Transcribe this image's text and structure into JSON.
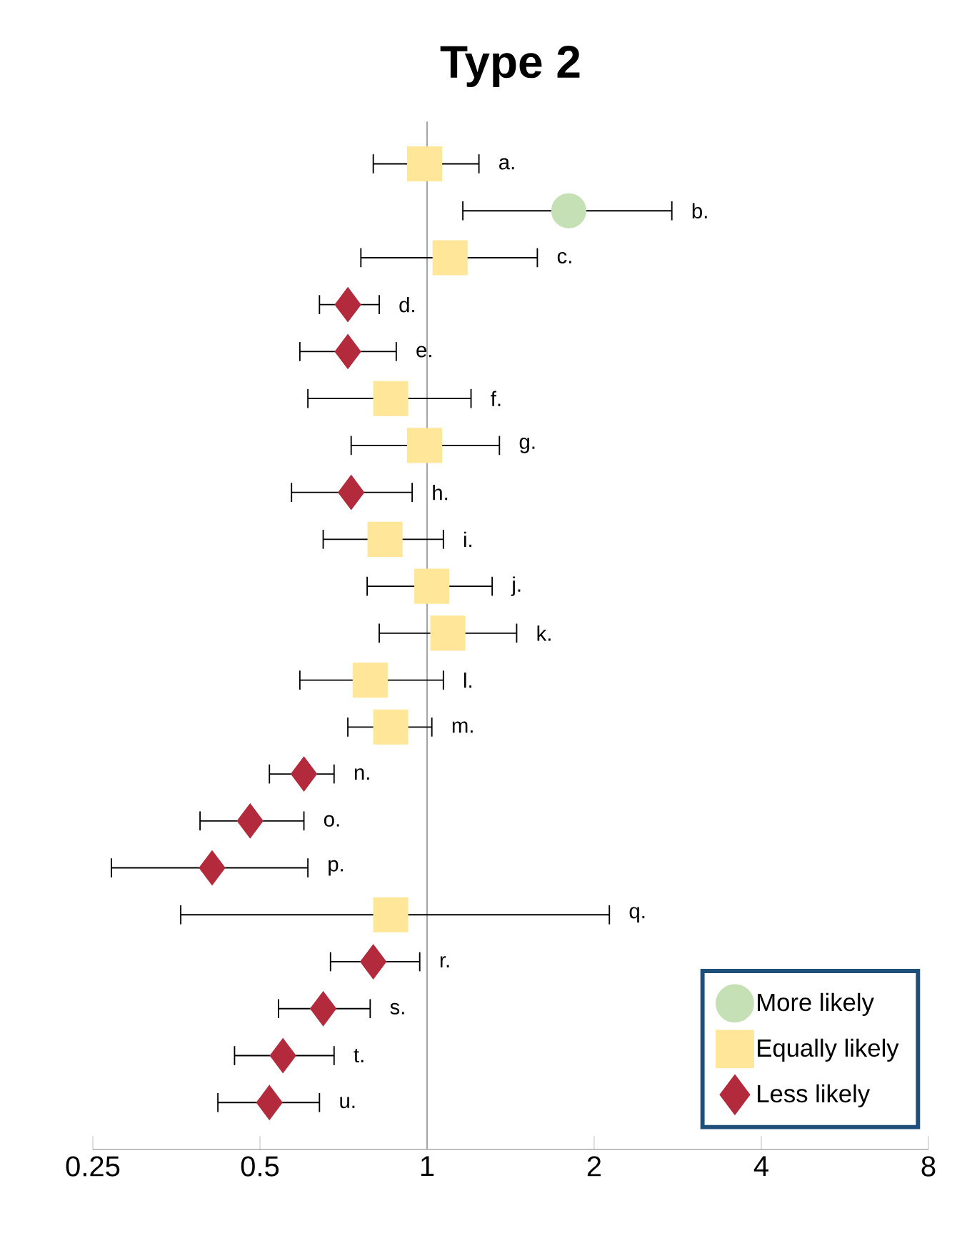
{
  "chart_data": {
    "type": "scatter",
    "orientation": "horizontal",
    "title": "Type 2",
    "categories": [
      "a.",
      "b.",
      "c.",
      "d.",
      "e.",
      "f.",
      "g.",
      "h.",
      "i.",
      "j.",
      "k.",
      "l.",
      "m.",
      "n.",
      "o.",
      "p.",
      "q.",
      "r.",
      "s.",
      "t.",
      "u."
    ],
    "log": "x",
    "xlim": [
      0.25,
      8
    ],
    "xticks": [
      0.25,
      0.5,
      1,
      2,
      4,
      8
    ],
    "grid": false,
    "legend": "bottom right",
    "ref_lines": [
      {
        "axis": "x",
        "value": 1,
        "color": "#a6a6a6"
      }
    ],
    "series": [
      {
        "name": "More likely",
        "color": "#c5e0b4",
        "marker": "circle",
        "values": [
          null,
          1.8,
          null,
          null,
          null,
          null,
          null,
          null,
          null,
          null,
          null,
          null,
          null,
          null,
          null,
          null,
          null,
          null,
          null,
          null,
          null
        ],
        "errors": [
          null,
          [
            1.16,
            2.76
          ],
          null,
          null,
          null,
          null,
          null,
          null,
          null,
          null,
          null,
          null,
          null,
          null,
          null,
          null,
          null,
          null,
          null,
          null,
          null
        ]
      },
      {
        "name": "Equally likely",
        "color": "#ffe699",
        "marker": "square",
        "values": [
          0.99,
          null,
          1.1,
          null,
          null,
          0.86,
          0.99,
          null,
          0.84,
          1.02,
          1.09,
          0.79,
          0.86,
          null,
          null,
          null,
          0.86,
          null,
          null,
          null,
          null
        ],
        "errors": [
          [
            0.8,
            1.24
          ],
          null,
          [
            0.76,
            1.58
          ],
          null,
          null,
          [
            0.61,
            1.2
          ],
          [
            0.73,
            1.35
          ],
          null,
          [
            0.65,
            1.07
          ],
          [
            0.78,
            1.31
          ],
          [
            0.82,
            1.45
          ],
          [
            0.59,
            1.07
          ],
          [
            0.72,
            1.02
          ],
          null,
          null,
          null,
          [
            0.36,
            2.13
          ],
          null,
          null,
          null,
          null
        ]
      },
      {
        "name": "Less likely",
        "color": "#b22a3c",
        "marker": "diamond",
        "values": [
          null,
          null,
          null,
          0.72,
          0.72,
          null,
          null,
          0.73,
          null,
          null,
          null,
          null,
          null,
          0.6,
          0.48,
          0.41,
          null,
          0.8,
          0.65,
          0.55,
          0.52
        ],
        "errors": [
          null,
          null,
          null,
          [
            0.64,
            0.82
          ],
          [
            0.59,
            0.88
          ],
          null,
          null,
          [
            0.57,
            0.94
          ],
          null,
          null,
          null,
          null,
          null,
          [
            0.52,
            0.68
          ],
          [
            0.39,
            0.6
          ],
          [
            0.27,
            0.61
          ],
          null,
          [
            0.67,
            0.97
          ],
          [
            0.54,
            0.79
          ],
          [
            0.45,
            0.68
          ],
          [
            0.42,
            0.64
          ]
        ]
      }
    ]
  }
}
